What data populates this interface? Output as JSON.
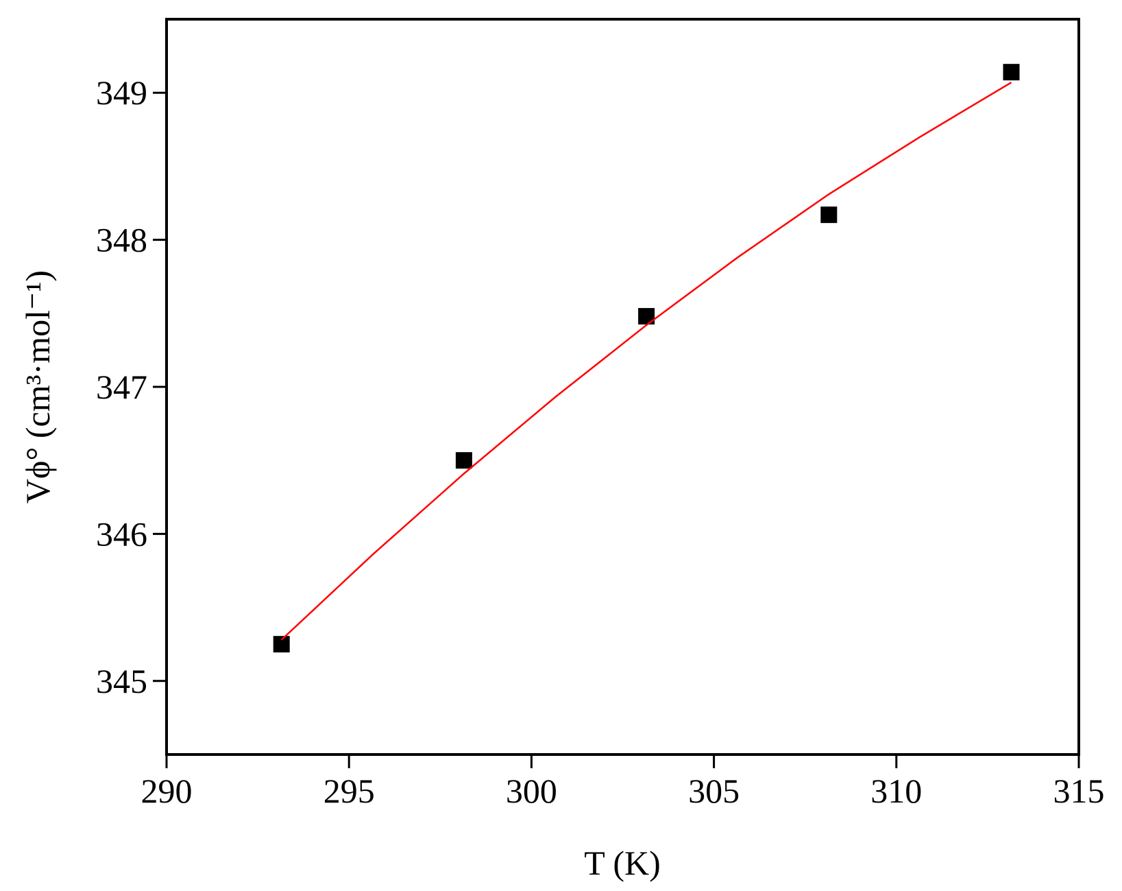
{
  "chart_data": {
    "type": "scatter",
    "x_label": "T (K)",
    "y_label": "Vϕ° (cm³·mol⁻¹)",
    "xlim": [
      290,
      315
    ],
    "xticks": [
      290,
      295,
      300,
      305,
      310,
      315
    ],
    "ylim": [
      344.5,
      349.5
    ],
    "yticks": [
      345,
      346,
      347,
      348,
      349
    ],
    "series": [
      {
        "kind": "points",
        "color": "#000000",
        "x": [
          293.15,
          298.15,
          303.15,
          308.15,
          313.15
        ],
        "values": [
          345.25,
          346.5,
          347.48,
          348.17,
          349.14
        ]
      },
      {
        "kind": "line",
        "color": "#ff0000",
        "x": [
          293.15,
          295.65,
          298.15,
          300.65,
          303.15,
          305.65,
          308.15,
          310.65,
          313.15
        ],
        "values": [
          345.28,
          345.86,
          346.41,
          346.93,
          347.42,
          347.88,
          348.31,
          348.7,
          349.07
        ]
      }
    ]
  }
}
